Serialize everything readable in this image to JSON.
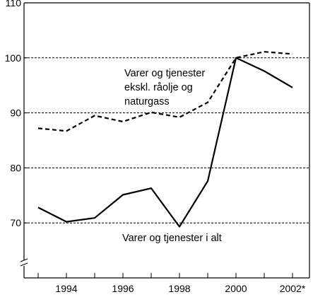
{
  "chart_data": {
    "type": "line",
    "x": [
      1993,
      1994,
      1995,
      1996,
      1997,
      1998,
      1999,
      2000,
      2001,
      2002
    ],
    "xlim": [
      1992.5,
      2002.6
    ],
    "ylim": [
      60,
      110
    ],
    "y_axis_break": true,
    "grid": "horizontal dashed",
    "y_ticks": [
      70,
      80,
      90,
      100,
      110
    ],
    "x_tick_values": [
      1994,
      1996,
      1998,
      2000,
      2002
    ],
    "x_tick_labels": [
      "1994",
      "1996",
      "1998",
      "2000",
      "2002*"
    ],
    "series": [
      {
        "name": "Varer og tjenester i alt",
        "style": "solid",
        "values": [
          72.8,
          70.2,
          70.9,
          75.1,
          76.3,
          69.3,
          77.6,
          100.0,
          97.6,
          94.6
        ]
      },
      {
        "name": "Varer og tjenester eksk. råolje og naturgass",
        "style": "dashed",
        "values": [
          87.2,
          86.7,
          89.5,
          88.4,
          90.1,
          89.2,
          91.9,
          100.0,
          101.1,
          100.7
        ]
      }
    ],
    "annotations": [
      [
        "Varer og tjenester",
        "ekskl. råolje og",
        "naturgass"
      ],
      [
        "Varer og tjenester i alt"
      ]
    ],
    "colors": {
      "line": "#000000",
      "grid": "#000000",
      "background": "#ffffff"
    }
  }
}
